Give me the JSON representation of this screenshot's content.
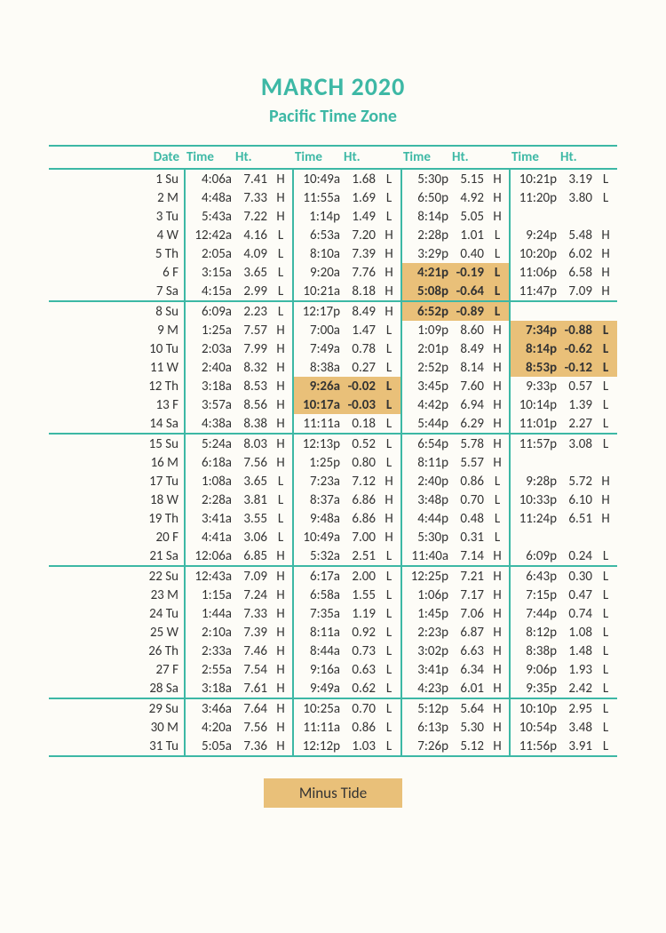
{
  "colors": {
    "accent": "#3db8a5",
    "highlight": "#e9c079",
    "background": "#fdfcf7",
    "text": "#333333"
  },
  "title": "MARCH 2020",
  "subtitle": "Pacific Time Zone",
  "legend": "Minus Tide",
  "table_type": "tide-table",
  "columns": [
    "Date",
    "Time",
    "Ht.",
    "",
    "Time",
    "Ht.",
    "",
    "Time",
    "Ht.",
    "",
    "Time",
    "Ht.",
    ""
  ],
  "rows": [
    {
      "date": "1 Su",
      "c": [
        [
          "4:06a",
          "7.41",
          "H"
        ],
        [
          "10:49a",
          "1.68",
          "L"
        ],
        [
          "5:30p",
          "5.15",
          "H"
        ],
        [
          "10:21p",
          "3.19",
          "L"
        ]
      ]
    },
    {
      "date": "2 M",
      "c": [
        [
          "4:48a",
          "7.33",
          "H"
        ],
        [
          "11:55a",
          "1.69",
          "L"
        ],
        [
          "6:50p",
          "4.92",
          "H"
        ],
        [
          "11:20p",
          "3.80",
          "L"
        ]
      ]
    },
    {
      "date": "3 Tu",
      "c": [
        [
          "5:43a",
          "7.22",
          "H"
        ],
        [
          "1:14p",
          "1.49",
          "L"
        ],
        [
          "8:14p",
          "5.05",
          "H"
        ],
        [
          "",
          "",
          ""
        ]
      ]
    },
    {
      "date": "4 W",
      "c": [
        [
          "12:42a",
          "4.16",
          "L"
        ],
        [
          "6:53a",
          "7.20",
          "H"
        ],
        [
          "2:28p",
          "1.01",
          "L"
        ],
        [
          "9:24p",
          "5.48",
          "H"
        ]
      ]
    },
    {
      "date": "5 Th",
      "c": [
        [
          "2:05a",
          "4.09",
          "L"
        ],
        [
          "8:10a",
          "7.39",
          "H"
        ],
        [
          "3:29p",
          "0.40",
          "L"
        ],
        [
          "10:20p",
          "6.02",
          "H"
        ]
      ]
    },
    {
      "date": "6 F",
      "c": [
        [
          "3:15a",
          "3.65",
          "L"
        ],
        [
          "9:20a",
          "7.76",
          "H"
        ],
        [
          "4:21p",
          "-0.19",
          "L",
          true
        ],
        [
          "11:06p",
          "6.58",
          "H"
        ]
      ]
    },
    {
      "date": "7 Sa",
      "c": [
        [
          "4:15a",
          "2.99",
          "L"
        ],
        [
          "10:21a",
          "8.18",
          "H"
        ],
        [
          "5:08p",
          "-0.64",
          "L",
          true
        ],
        [
          "11:47p",
          "7.09",
          "H"
        ]
      ]
    },
    {
      "date": "8 Su",
      "weektop": true,
      "c": [
        [
          "6:09a",
          "2.23",
          "L"
        ],
        [
          "12:17p",
          "8.49",
          "H"
        ],
        [
          "6:52p",
          "-0.89",
          "L",
          true
        ],
        [
          "",
          "",
          ""
        ]
      ]
    },
    {
      "date": "9 M",
      "c": [
        [
          "1:25a",
          "7.57",
          "H"
        ],
        [
          "7:00a",
          "1.47",
          "L"
        ],
        [
          "1:09p",
          "8.60",
          "H"
        ],
        [
          "7:34p",
          "-0.88",
          "L",
          true
        ]
      ]
    },
    {
      "date": "10 Tu",
      "c": [
        [
          "2:03a",
          "7.99",
          "H"
        ],
        [
          "7:49a",
          "0.78",
          "L"
        ],
        [
          "2:01p",
          "8.49",
          "H"
        ],
        [
          "8:14p",
          "-0.62",
          "L",
          true
        ]
      ]
    },
    {
      "date": "11 W",
      "c": [
        [
          "2:40a",
          "8.32",
          "H"
        ],
        [
          "8:38a",
          "0.27",
          "L"
        ],
        [
          "2:52p",
          "8.14",
          "H"
        ],
        [
          "8:53p",
          "-0.12",
          "L",
          true
        ]
      ]
    },
    {
      "date": "12 Th",
      "c": [
        [
          "3:18a",
          "8.53",
          "H"
        ],
        [
          "9:26a",
          "-0.02",
          "L",
          true
        ],
        [
          "3:45p",
          "7.60",
          "H"
        ],
        [
          "9:33p",
          "0.57",
          "L"
        ]
      ]
    },
    {
      "date": "13 F",
      "c": [
        [
          "3:57a",
          "8.56",
          "H"
        ],
        [
          "10:17a",
          "-0.03",
          "L",
          true
        ],
        [
          "4:42p",
          "6.94",
          "H"
        ],
        [
          "10:14p",
          "1.39",
          "L"
        ]
      ]
    },
    {
      "date": "14 Sa",
      "c": [
        [
          "4:38a",
          "8.38",
          "H"
        ],
        [
          "11:11a",
          "0.18",
          "L"
        ],
        [
          "5:44p",
          "6.29",
          "H"
        ],
        [
          "11:01p",
          "2.27",
          "L"
        ]
      ]
    },
    {
      "date": "15 Su",
      "weektop": true,
      "c": [
        [
          "5:24a",
          "8.03",
          "H"
        ],
        [
          "12:13p",
          "0.52",
          "L"
        ],
        [
          "6:54p",
          "5.78",
          "H"
        ],
        [
          "11:57p",
          "3.08",
          "L"
        ]
      ]
    },
    {
      "date": "16 M",
      "c": [
        [
          "6:18a",
          "7.56",
          "H"
        ],
        [
          "1:25p",
          "0.80",
          "L"
        ],
        [
          "8:11p",
          "5.57",
          "H"
        ],
        [
          "",
          "",
          ""
        ]
      ]
    },
    {
      "date": "17 Tu",
      "c": [
        [
          "1:08a",
          "3.65",
          "L"
        ],
        [
          "7:23a",
          "7.12",
          "H"
        ],
        [
          "2:40p",
          "0.86",
          "L"
        ],
        [
          "9:28p",
          "5.72",
          "H"
        ]
      ]
    },
    {
      "date": "18 W",
      "c": [
        [
          "2:28a",
          "3.81",
          "L"
        ],
        [
          "8:37a",
          "6.86",
          "H"
        ],
        [
          "3:48p",
          "0.70",
          "L"
        ],
        [
          "10:33p",
          "6.10",
          "H"
        ]
      ]
    },
    {
      "date": "19 Th",
      "c": [
        [
          "3:41a",
          "3.55",
          "L"
        ],
        [
          "9:48a",
          "6.86",
          "H"
        ],
        [
          "4:44p",
          "0.48",
          "L"
        ],
        [
          "11:24p",
          "6.51",
          "H"
        ]
      ]
    },
    {
      "date": "20 F",
      "c": [
        [
          "4:41a",
          "3.06",
          "L"
        ],
        [
          "10:49a",
          "7.00",
          "H"
        ],
        [
          "5:30p",
          "0.31",
          "L"
        ],
        [
          "",
          "",
          ""
        ]
      ]
    },
    {
      "date": "21 Sa",
      "c": [
        [
          "12:06a",
          "6.85",
          "H"
        ],
        [
          "5:32a",
          "2.51",
          "L"
        ],
        [
          "11:40a",
          "7.14",
          "H"
        ],
        [
          "6:09p",
          "0.24",
          "L"
        ]
      ]
    },
    {
      "date": "22 Su",
      "weektop": true,
      "c": [
        [
          "12:43a",
          "7.09",
          "H"
        ],
        [
          "6:17a",
          "2.00",
          "L"
        ],
        [
          "12:25p",
          "7.21",
          "H"
        ],
        [
          "6:43p",
          "0.30",
          "L"
        ]
      ]
    },
    {
      "date": "23 M",
      "c": [
        [
          "1:15a",
          "7.24",
          "H"
        ],
        [
          "6:58a",
          "1.55",
          "L"
        ],
        [
          "1:06p",
          "7.17",
          "H"
        ],
        [
          "7:15p",
          "0.47",
          "L"
        ]
      ]
    },
    {
      "date": "24 Tu",
      "c": [
        [
          "1:44a",
          "7.33",
          "H"
        ],
        [
          "7:35a",
          "1.19",
          "L"
        ],
        [
          "1:45p",
          "7.06",
          "H"
        ],
        [
          "7:44p",
          "0.74",
          "L"
        ]
      ]
    },
    {
      "date": "25 W",
      "c": [
        [
          "2:10a",
          "7.39",
          "H"
        ],
        [
          "8:11a",
          "0.92",
          "L"
        ],
        [
          "2:23p",
          "6.87",
          "H"
        ],
        [
          "8:12p",
          "1.08",
          "L"
        ]
      ]
    },
    {
      "date": "26 Th",
      "c": [
        [
          "2:33a",
          "7.46",
          "H"
        ],
        [
          "8:44a",
          "0.73",
          "L"
        ],
        [
          "3:02p",
          "6.63",
          "H"
        ],
        [
          "8:38p",
          "1.48",
          "L"
        ]
      ]
    },
    {
      "date": "27 F",
      "c": [
        [
          "2:55a",
          "7.54",
          "H"
        ],
        [
          "9:16a",
          "0.63",
          "L"
        ],
        [
          "3:41p",
          "6.34",
          "H"
        ],
        [
          "9:06p",
          "1.93",
          "L"
        ]
      ]
    },
    {
      "date": "28 Sa",
      "c": [
        [
          "3:18a",
          "7.61",
          "H"
        ],
        [
          "9:49a",
          "0.62",
          "L"
        ],
        [
          "4:23p",
          "6.01",
          "H"
        ],
        [
          "9:35p",
          "2.42",
          "L"
        ]
      ]
    },
    {
      "date": "29 Su",
      "weektop": true,
      "c": [
        [
          "3:46a",
          "7.64",
          "H"
        ],
        [
          "10:25a",
          "0.70",
          "L"
        ],
        [
          "5:12p",
          "5.64",
          "H"
        ],
        [
          "10:10p",
          "2.95",
          "L"
        ]
      ]
    },
    {
      "date": "30 M",
      "c": [
        [
          "4:20a",
          "7.56",
          "H"
        ],
        [
          "11:11a",
          "0.86",
          "L"
        ],
        [
          "6:13p",
          "5.30",
          "H"
        ],
        [
          "10:54p",
          "3.48",
          "L"
        ]
      ]
    },
    {
      "date": "31 Tu",
      "bottom": true,
      "c": [
        [
          "5:05a",
          "7.36",
          "H"
        ],
        [
          "12:12p",
          "1.03",
          "L"
        ],
        [
          "7:26p",
          "5.12",
          "H"
        ],
        [
          "11:56p",
          "3.91",
          "L"
        ]
      ]
    }
  ]
}
